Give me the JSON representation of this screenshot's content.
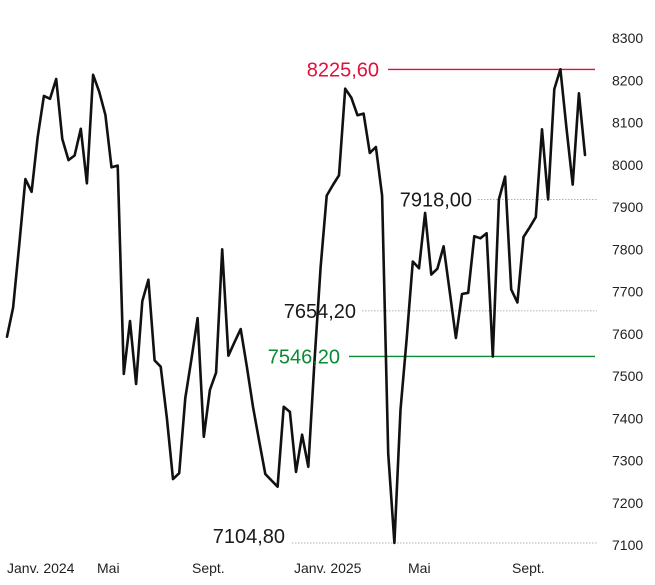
{
  "chart_data": {
    "type": "line",
    "ylim": [
      7100,
      8300
    ],
    "y_ticks": [
      8300,
      8200,
      8100,
      8000,
      7900,
      7800,
      7700,
      7600,
      7500,
      7400,
      7300,
      7200,
      7100
    ],
    "x_ticks": [
      "Janv. 2024",
      "Mai",
      "Sept.",
      "Janv. 2025",
      "Mai",
      "Sept."
    ],
    "grid": false,
    "series": [
      {
        "values": [
          7593,
          7662,
          7812,
          7966,
          7936,
          8066,
          8163,
          8156,
          8203,
          8061,
          8011,
          8022,
          8085,
          7956,
          8213,
          8173,
          8118,
          7994,
          7998,
          7505,
          7630,
          7481,
          7677,
          7728,
          7537,
          7522,
          7400,
          7256,
          7270,
          7448,
          7541,
          7637,
          7356,
          7467,
          7508,
          7800,
          7548,
          7580,
          7611,
          7523,
          7427,
          7347,
          7268,
          7253,
          7238,
          7427,
          7415,
          7273,
          7361,
          7285,
          7532,
          7757,
          7927,
          7952,
          7975,
          8180,
          8159,
          8117,
          8121,
          8028,
          8042,
          7927,
          7317,
          7105,
          7420,
          7589,
          7771,
          7755,
          7886,
          7740,
          7754,
          7807,
          7700,
          7590,
          7694,
          7697,
          7831,
          7826,
          7838,
          7546,
          7918,
          7972,
          7705,
          7674,
          7829,
          7852,
          7876,
          8084,
          7918,
          8179,
          8226,
          8084,
          7953,
          8169,
          8023
        ]
      }
    ],
    "annotations": [
      {
        "label": "8225,60",
        "value": 8225.6,
        "kind": "max"
      },
      {
        "label": "7918,00",
        "value": 7918.0,
        "kind": "level"
      },
      {
        "label": "7654,20",
        "value": 7654.2,
        "kind": "level"
      },
      {
        "label": "7546,20",
        "value": 7546.2,
        "kind": "min"
      },
      {
        "label": "7104,80",
        "value": 7104.8,
        "kind": "low"
      }
    ],
    "colors": {
      "line": "#111111",
      "max": "#e0103a",
      "min": "#0a8a35",
      "level": "#9a9a9a"
    }
  }
}
